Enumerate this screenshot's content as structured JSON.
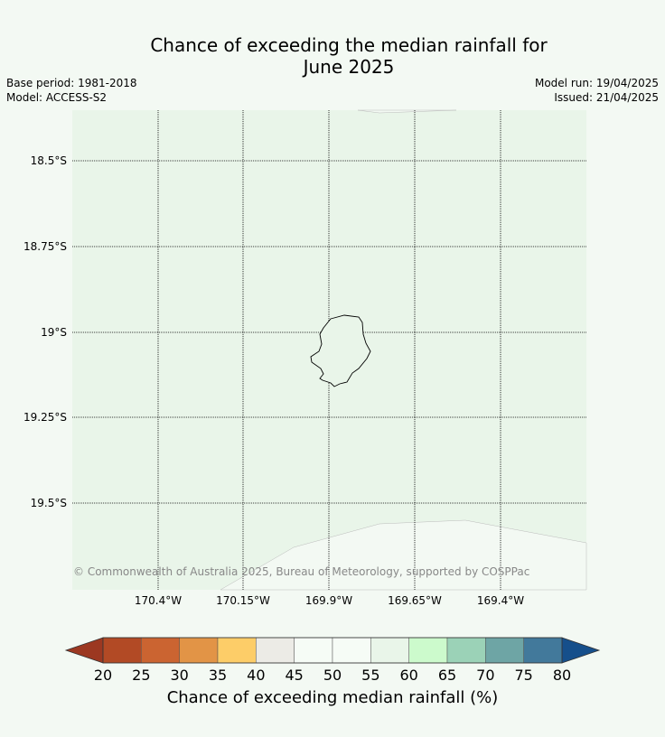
{
  "title": {
    "line1": "Chance of exceeding the median rainfall for",
    "line2": "June 2025"
  },
  "meta": {
    "base_period": "Base period: 1981-2018",
    "model": "Model: ACCESS-S2",
    "model_run": "Model run: 19/04/2025",
    "issued": "Issued: 21/04/2025"
  },
  "map": {
    "lat_labels": [
      "18.5°S",
      "18.75°S",
      "19°S",
      "19.25°S",
      "19.5°S"
    ],
    "lon_labels": [
      "170.4°W",
      "170.15°W",
      "169.9°W",
      "169.65°W",
      "169.4°W"
    ],
    "copyright": "© Commonwealth of Australia 2025, Bureau of Meteorology, supported by COSPPac",
    "colors": {
      "region_fill": "#e9f5e9",
      "outside_fill": "#f3f9f3",
      "gridline": "#000000",
      "coastline": "#000000"
    }
  },
  "colorbar": {
    "ticks": [
      "20",
      "25",
      "30",
      "35",
      "40",
      "45",
      "50",
      "55",
      "60",
      "65",
      "70",
      "75",
      "80"
    ],
    "colors": [
      "#b24a25",
      "#cb6431",
      "#e29446",
      "#fdcd68",
      "#ecebe6",
      "#f6fcf6",
      "#f6fcf6",
      "#e9f5e9",
      "#ccfacc",
      "#9bd2b7",
      "#6ea5a5",
      "#42799b"
    ],
    "under_color": "#9c3821",
    "over_color": "#164f8b",
    "label": "Chance of exceeding median rainfall (%)"
  }
}
